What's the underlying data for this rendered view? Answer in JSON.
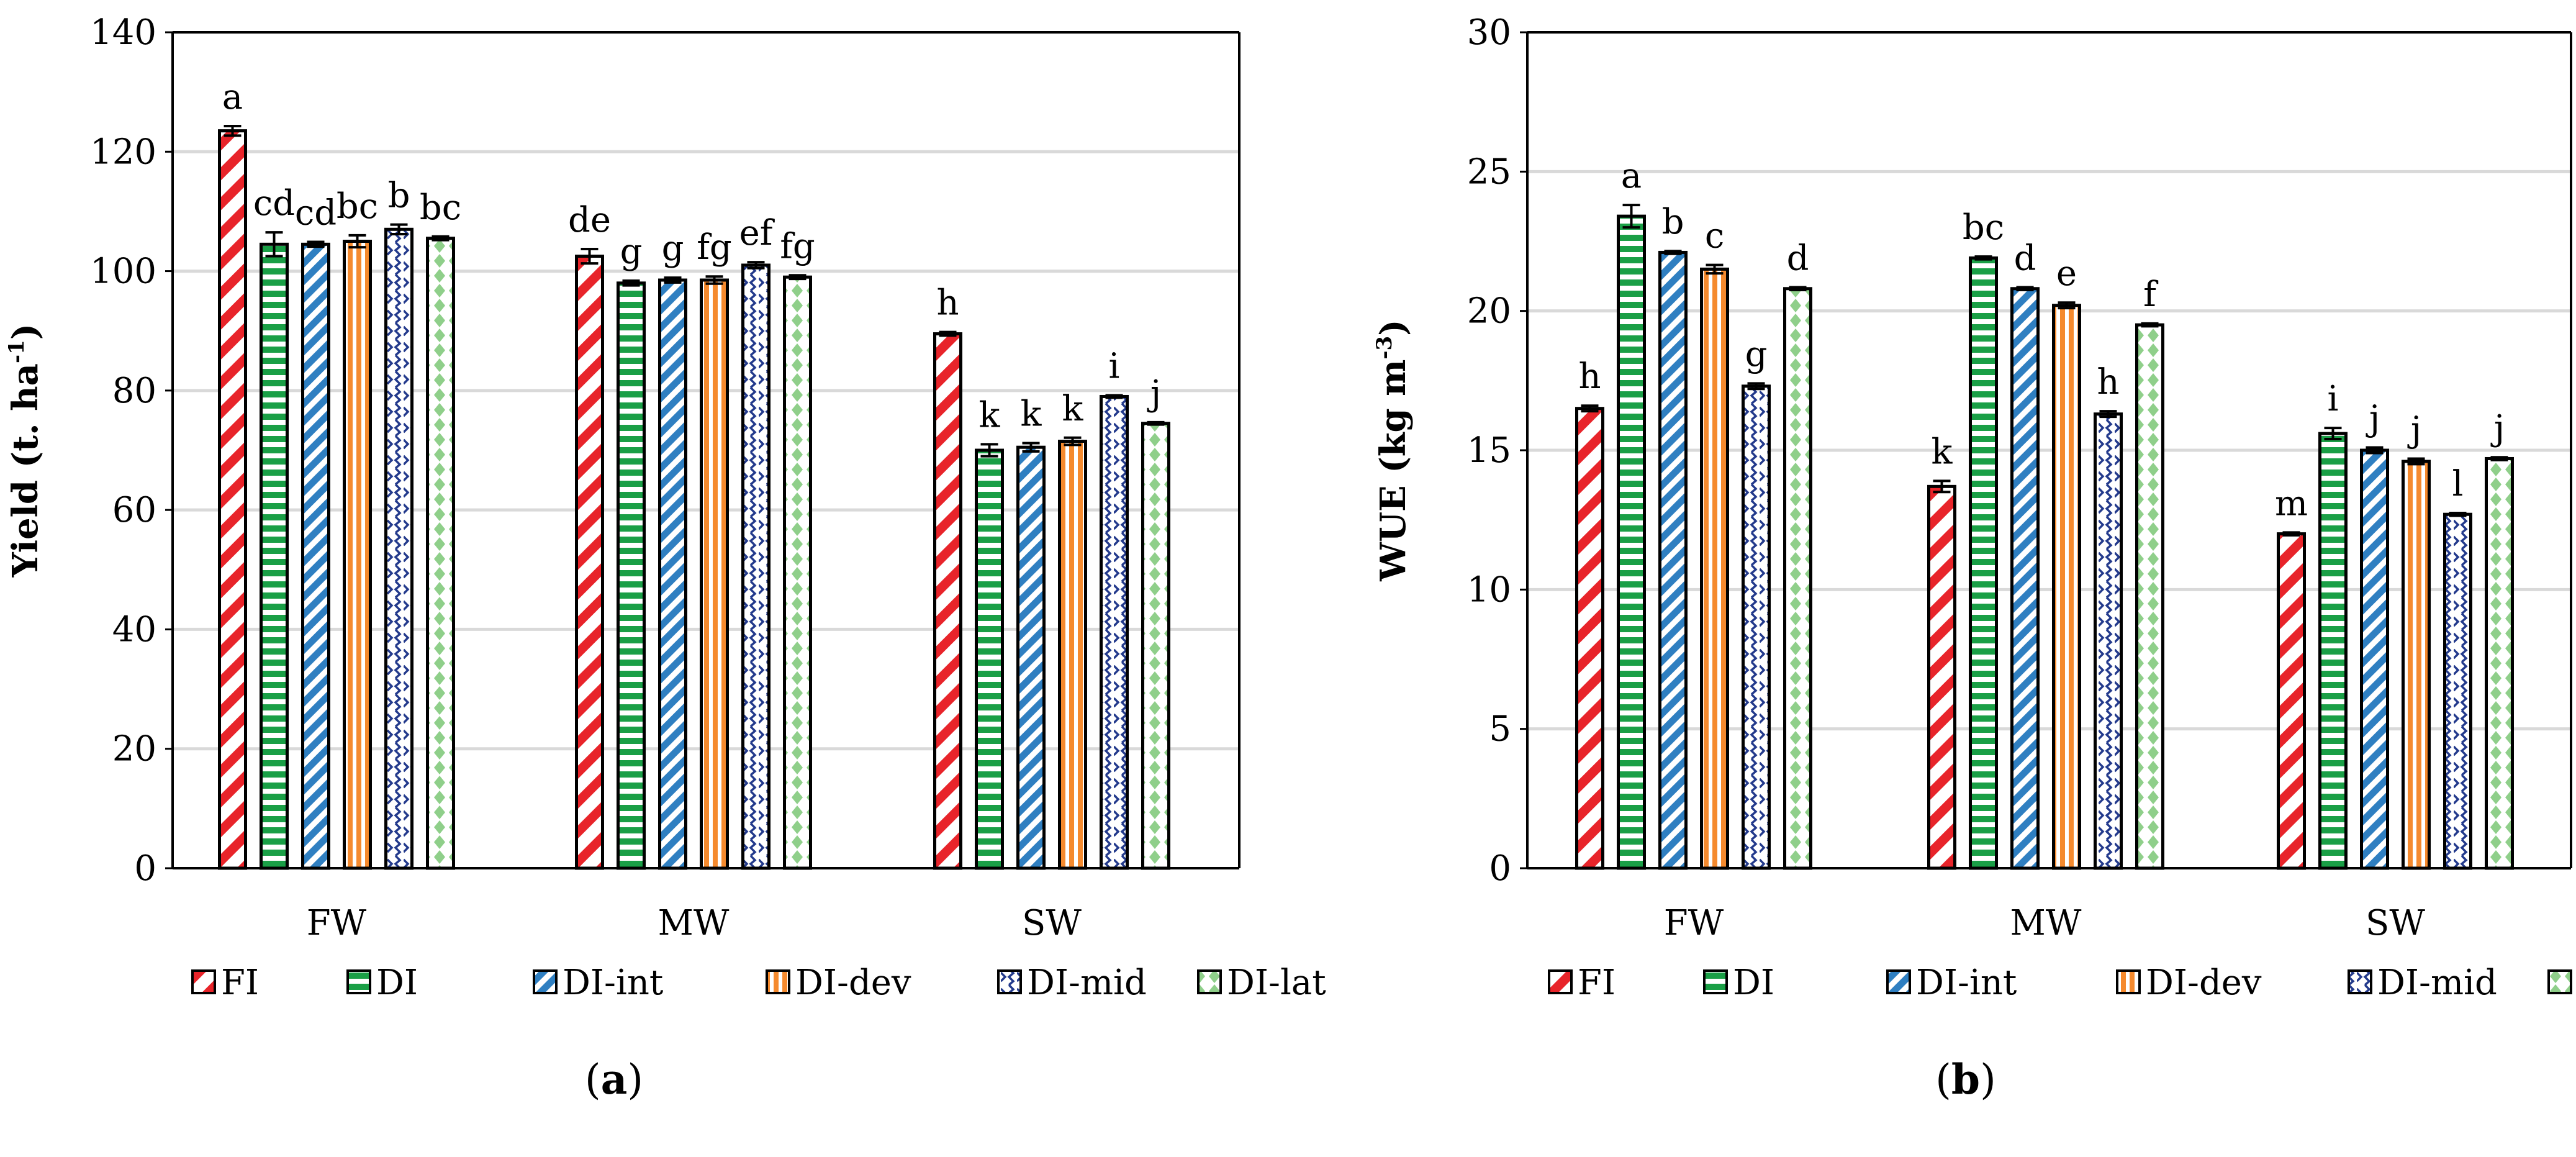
{
  "chart_data": [
    {
      "type": "bar",
      "panel_label": "a",
      "title": "",
      "xlabel": "",
      "ylabel": "Yield (t. ha",
      "ylabel_sup": "-1",
      "ylabel_close": ")",
      "ylim": [
        0,
        140
      ],
      "yticks": [
        0,
        20,
        40,
        60,
        80,
        100,
        120,
        140
      ],
      "grid": true,
      "legend_position": "bottom",
      "categories": [
        "FW",
        "MW",
        "SW"
      ],
      "series": [
        {
          "name": "FI",
          "values": [
            123.5,
            102.5,
            89.5
          ],
          "errors": [
            0.8,
            1.2,
            0.3
          ],
          "letters": [
            "a",
            "de",
            "h"
          ]
        },
        {
          "name": "DI",
          "values": [
            104.5,
            98.0,
            70.0
          ],
          "errors": [
            2.0,
            0.4,
            1.0
          ],
          "letters": [
            "cd",
            "g",
            "k"
          ]
        },
        {
          "name": "DI-int",
          "values": [
            104.5,
            98.5,
            70.5
          ],
          "errors": [
            0.4,
            0.4,
            0.7
          ],
          "letters": [
            "cd",
            "g",
            "k"
          ]
        },
        {
          "name": "DI-dev",
          "values": [
            105.0,
            98.5,
            71.5
          ],
          "errors": [
            1.0,
            0.6,
            0.6
          ],
          "letters": [
            "bc",
            "fg",
            "k"
          ]
        },
        {
          "name": "DI-mid",
          "values": [
            107.0,
            101.0,
            79.0
          ],
          "errors": [
            0.8,
            0.5,
            0.2
          ],
          "letters": [
            "b",
            "ef",
            "i"
          ]
        },
        {
          "name": "DI-lat",
          "values": [
            105.5,
            99.0,
            74.5
          ],
          "errors": [
            0.3,
            0.3,
            0.2
          ],
          "letters": [
            "bc",
            "fg",
            "j"
          ]
        }
      ]
    },
    {
      "type": "bar",
      "panel_label": "b",
      "title": "",
      "xlabel": "",
      "ylabel": "WUE (kg m",
      "ylabel_sup": "-3",
      "ylabel_close": ")",
      "ylim": [
        0,
        30
      ],
      "yticks": [
        0,
        5,
        10,
        15,
        20,
        25,
        30
      ],
      "grid": true,
      "legend_position": "bottom",
      "categories": [
        "FW",
        "MW",
        "SW"
      ],
      "series": [
        {
          "name": "FI",
          "values": [
            16.5,
            13.7,
            12.0
          ],
          "errors": [
            0.1,
            0.2,
            0.05
          ],
          "letters": [
            "h",
            "k",
            "m"
          ]
        },
        {
          "name": "DI",
          "values": [
            23.4,
            21.9,
            15.6
          ],
          "errors": [
            0.4,
            0.05,
            0.2
          ],
          "letters": [
            "a",
            "bc",
            "i"
          ]
        },
        {
          "name": "DI-int",
          "values": [
            22.1,
            20.8,
            15.0
          ],
          "errors": [
            0.05,
            0.05,
            0.1
          ],
          "letters": [
            "b",
            "d",
            "j"
          ]
        },
        {
          "name": "DI-dev",
          "values": [
            21.5,
            20.2,
            14.6
          ],
          "errors": [
            0.15,
            0.1,
            0.1
          ],
          "letters": [
            "c",
            "e",
            "j"
          ]
        },
        {
          "name": "DI-mid",
          "values": [
            17.3,
            16.3,
            12.7
          ],
          "errors": [
            0.1,
            0.1,
            0.05
          ],
          "letters": [
            "g",
            "h",
            "l"
          ]
        },
        {
          "name": "DI-lat",
          "values": [
            20.8,
            19.5,
            14.7
          ],
          "errors": [
            0.05,
            0.05,
            0.05
          ],
          "letters": [
            "d",
            "f",
            "j"
          ]
        }
      ]
    }
  ],
  "colors": {
    "FI": "#e8242a",
    "DI": "#1a9f46",
    "DI-int": "#2f7fc1",
    "DI-dev": "#f58a2e",
    "DI-mid": "#233a8c",
    "DI-lat": "#8fcf8a",
    "grid": "#d9d9d9",
    "outline": "#000000"
  }
}
